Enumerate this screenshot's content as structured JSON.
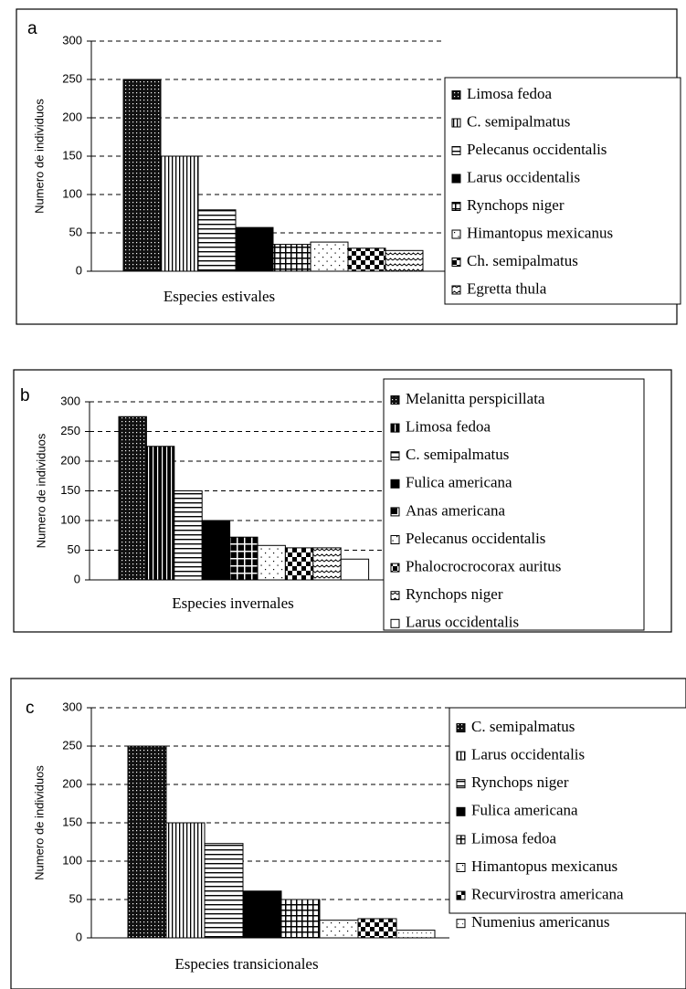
{
  "chart_data": [
    {
      "type": "bar",
      "title": "a",
      "xlabel": "Especies estivales",
      "ylabel": "Numero de individuos",
      "categories": [
        "Limosa fedoa",
        "C. semipalmatus",
        "Pelecanus occidentalis",
        "Larus occidentalis",
        "Rynchops niger",
        "Himantopus mexicanus",
        "Ch. semipalmatus",
        "Egretta thula"
      ],
      "values": [
        250,
        150,
        80,
        57,
        35,
        38,
        30,
        27
      ],
      "patterns": [
        "dots",
        "vlines",
        "hlines",
        "solid",
        "grid",
        "sparsedots",
        "checker",
        "waves"
      ],
      "ylim": [
        0,
        300
      ],
      "yticks": [
        0,
        50,
        100,
        150,
        200,
        250,
        300
      ],
      "grid": true
    },
    {
      "type": "bar",
      "title": "b",
      "xlabel": "Especies invernales",
      "ylabel": "Numero de individuos",
      "categories": [
        "Melanitta perspicillata",
        "Limosa fedoa",
        "C. semipalmatus",
        "Fulica americana",
        "Anas americana",
        "Pelecanus occidentalis",
        "Phalocrocrocorax auritus",
        "Rynchops niger",
        "Larus occidentalis"
      ],
      "values": [
        275,
        225,
        150,
        100,
        72,
        58,
        54,
        54,
        35
      ],
      "patterns": [
        "dots",
        "darkvlines",
        "hlines",
        "solid",
        "darkgrid",
        "sparsedots",
        "checker",
        "waves",
        "white"
      ],
      "ylim": [
        0,
        300
      ],
      "yticks": [
        0,
        50,
        100,
        150,
        200,
        250,
        300
      ],
      "grid": true
    },
    {
      "type": "bar",
      "title": "c",
      "xlabel": "Especies transicionales",
      "ylabel": "Numero de individuos",
      "categories": [
        "C. semipalmatus",
        "Larus occidentalis",
        "Rynchops niger",
        "Fulica americana",
        "Limosa fedoa",
        "Himantopus mexicanus",
        "Recurvirostra americana",
        "Numenius americanus"
      ],
      "values": [
        250,
        150,
        123,
        61,
        50,
        23,
        25,
        10
      ],
      "patterns": [
        "dots",
        "vlines",
        "hlines",
        "solid",
        "grid",
        "sparsedots",
        "checker",
        "finedots"
      ],
      "ylim": [
        0,
        300
      ],
      "yticks": [
        0,
        50,
        100,
        150,
        200,
        250,
        300
      ],
      "grid": true
    }
  ]
}
